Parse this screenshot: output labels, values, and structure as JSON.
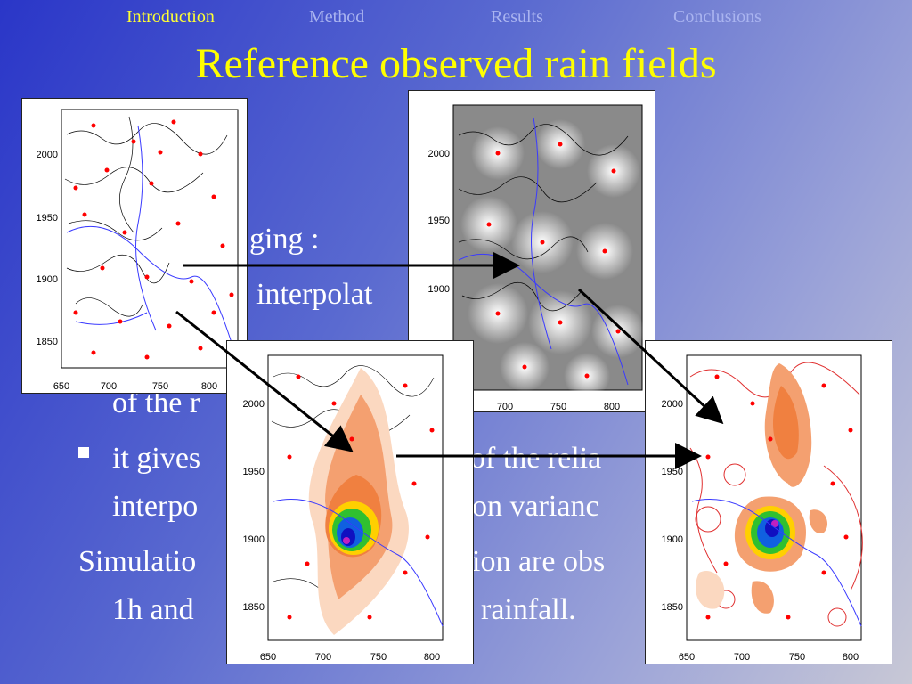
{
  "nav": {
    "items": [
      {
        "label": "Introduction",
        "active": true
      },
      {
        "label": "Method",
        "active": false
      },
      {
        "label": "Results",
        "active": false
      },
      {
        "label": "Conclusions",
        "active": false
      }
    ]
  },
  "slide": {
    "title": "Reference observed rain fields",
    "text": {
      "line1": "ging :",
      "line2": "interpolat",
      "line3": "of the r",
      "bullet_a": "it gives",
      "bullet_b": "of the relia",
      "line5a": "interpo",
      "line5b": "on varianc",
      "line6a": "Simulatio",
      "line6b": "ion are obs",
      "line7a": "1h and",
      "line7b": "rainfall."
    }
  },
  "maps": {
    "x_ticks": [
      "650",
      "700",
      "750",
      "800"
    ],
    "y_ticks": [
      "2000",
      "1950",
      "1900",
      "1850"
    ],
    "colors": {
      "gauge": "#ff0000",
      "river": "#3a3aff",
      "contour": "#000000",
      "arrow": "#000000",
      "rain_low": "#fbd8c0",
      "rain_mid": "#f08040",
      "rain_high": "#ffd000",
      "rain_peak": "#1010c0"
    }
  }
}
